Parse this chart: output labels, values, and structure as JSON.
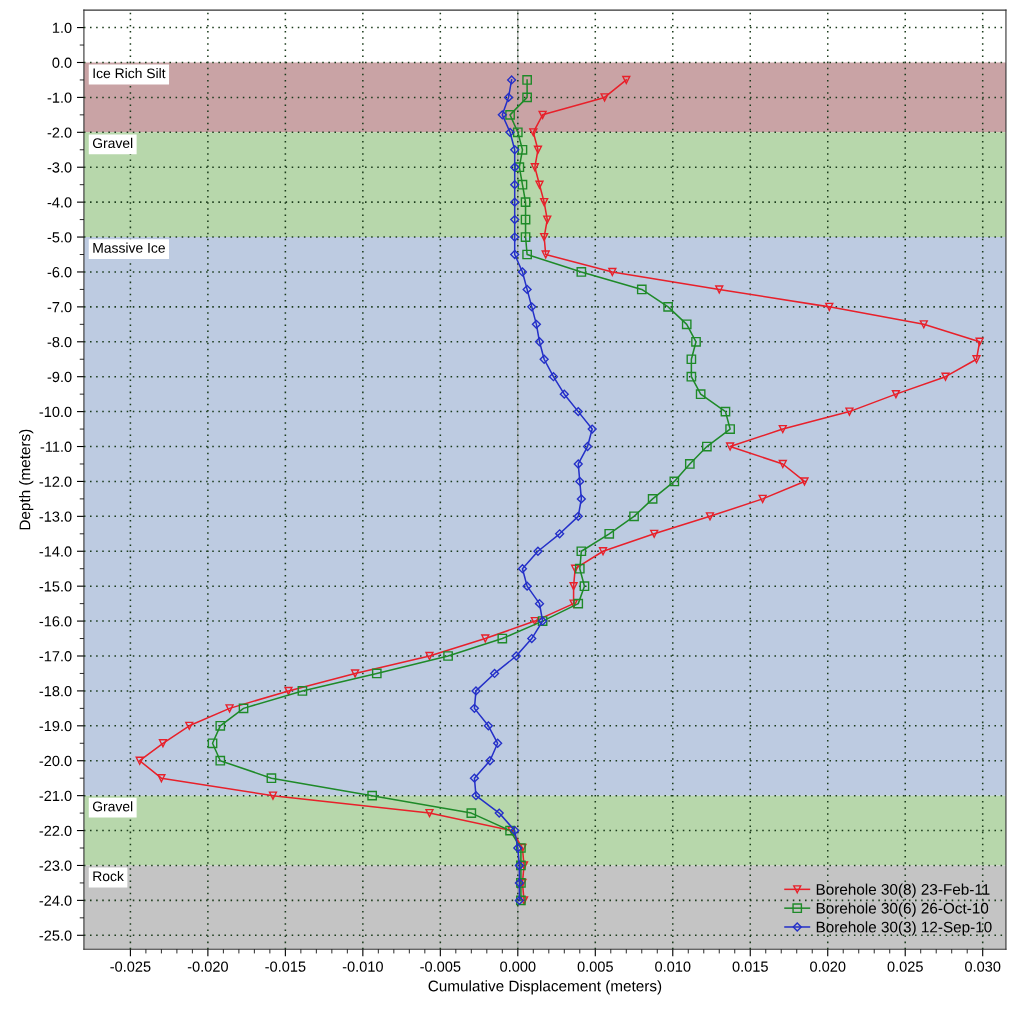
{
  "chart_data": {
    "type": "line",
    "xlabel": "Cumulative Displacement (meters)",
    "ylabel": "Depth (meters)",
    "xlim": [
      -0.028,
      0.0315
    ],
    "ylim": [
      -25.4,
      1.5
    ],
    "xticks": [
      {
        "value": -0.025,
        "label": "-0.025"
      },
      {
        "value": -0.02,
        "label": "-0.020"
      },
      {
        "value": -0.015,
        "label": "-0.015"
      },
      {
        "value": -0.01,
        "label": "-0.010"
      },
      {
        "value": -0.005,
        "label": "-0.005"
      },
      {
        "value": 0,
        "label": "0.000"
      },
      {
        "value": 0.005,
        "label": "0.005"
      },
      {
        "value": 0.01,
        "label": "0.010"
      },
      {
        "value": 0.015,
        "label": "0.015"
      },
      {
        "value": 0.02,
        "label": "0.020"
      },
      {
        "value": 0.025,
        "label": "0.025"
      },
      {
        "value": 0.03,
        "label": "0.030"
      }
    ],
    "yticks": [
      {
        "value": 1,
        "label": "1.0"
      },
      {
        "value": 0,
        "label": "0.0"
      },
      {
        "value": -1,
        "label": "-1.0"
      },
      {
        "value": -2,
        "label": "-2.0"
      },
      {
        "value": -3,
        "label": "-3.0"
      },
      {
        "value": -4,
        "label": "-4.0"
      },
      {
        "value": -5,
        "label": "-5.0"
      },
      {
        "value": -6,
        "label": "-6.0"
      },
      {
        "value": -7,
        "label": "-7.0"
      },
      {
        "value": -8,
        "label": "-8.0"
      },
      {
        "value": -9,
        "label": "-9.0"
      },
      {
        "value": -10,
        "label": "-10.0"
      },
      {
        "value": -11,
        "label": "-11.0"
      },
      {
        "value": -12,
        "label": "-12.0"
      },
      {
        "value": -13,
        "label": "-13.0"
      },
      {
        "value": -14,
        "label": "-14.0"
      },
      {
        "value": -15,
        "label": "-15.0"
      },
      {
        "value": -16,
        "label": "-16.0"
      },
      {
        "value": -17,
        "label": "-17.0"
      },
      {
        "value": -18,
        "label": "-18.0"
      },
      {
        "value": -19,
        "label": "-19.0"
      },
      {
        "value": -20,
        "label": "-20.0"
      },
      {
        "value": -21,
        "label": "-21.0"
      },
      {
        "value": -22,
        "label": "-22.0"
      },
      {
        "value": -23,
        "label": "-23.0"
      },
      {
        "value": -24,
        "label": "-24.0"
      },
      {
        "value": -25,
        "label": "-25.0"
      }
    ],
    "grid": true,
    "legend": "bottom right",
    "bands": [
      {
        "axis": "y",
        "from": 0,
        "to": -2,
        "label": "Ice Rich Silt",
        "color": "#c9a3a5"
      },
      {
        "axis": "y",
        "from": -2,
        "to": -5,
        "label": "Gravel",
        "color": "#b7d7ab"
      },
      {
        "axis": "y",
        "from": -5,
        "to": -21,
        "label": "Massive Ice",
        "color": "#bdcbe1"
      },
      {
        "axis": "y",
        "from": -21,
        "to": -23,
        "label": "Gravel",
        "color": "#b7d7ab"
      },
      {
        "axis": "y",
        "from": -23,
        "to": -25.4,
        "label": "Rock",
        "color": "#c4c4c4"
      }
    ],
    "ref_lines": [
      {
        "axis": "x",
        "value": 0,
        "color": "#a0a0a0"
      }
    ],
    "series": [
      {
        "name": "Borehole 30(8) 23-Feb-11",
        "color": "#e8202a",
        "marker": "triangle",
        "x": [
          0.007,
          0.0056,
          0.0016,
          0.001,
          0.0013,
          0.0011,
          0.0014,
          0.0017,
          0.0019,
          0.0017,
          0.0018,
          0.0061,
          0.013,
          0.0201,
          0.0262,
          0.0298,
          0.0296,
          0.0276,
          0.0244,
          0.0214,
          0.0171,
          0.0137,
          0.0171,
          0.0185,
          0.0158,
          0.0124,
          0.0088,
          0.0055,
          0.0037,
          0.0036,
          0.0036,
          0.0011,
          -0.0021,
          -0.0057,
          -0.0105,
          -0.0148,
          -0.0186,
          -0.0212,
          -0.0229,
          -0.0244,
          -0.023,
          -0.0158,
          -0.0057,
          -0.0004,
          0.0003,
          0.0004,
          0.0003,
          0.0004
        ],
        "values": [
          -0.5,
          -1,
          -1.5,
          -2,
          -2.5,
          -3,
          -3.5,
          -4,
          -4.5,
          -5,
          -5.5,
          -6,
          -6.5,
          -7,
          -7.5,
          -8,
          -8.5,
          -9,
          -9.5,
          -10,
          -10.5,
          -11,
          -11.5,
          -12,
          -12.5,
          -13,
          -13.5,
          -14,
          -14.5,
          -15,
          -15.5,
          -16,
          -16.5,
          -17,
          -17.5,
          -18,
          -18.5,
          -19,
          -19.5,
          -20,
          -20.5,
          -21,
          -21.5,
          -22,
          -22.5,
          -23,
          -23.5,
          -24
        ]
      },
      {
        "name": "Borehole 30(6) 26-Oct-10",
        "color": "#1e8a28",
        "marker": "square",
        "x": [
          0.0006,
          0.0006,
          -0.0005,
          0.0,
          0.0003,
          0.0001,
          0.0003,
          0.0005,
          0.0005,
          0.0005,
          0.0006,
          0.0041,
          0.008,
          0.0097,
          0.0109,
          0.0115,
          0.0112,
          0.0112,
          0.0118,
          0.0134,
          0.0137,
          0.0122,
          0.0111,
          0.0101,
          0.0087,
          0.0075,
          0.0059,
          0.0041,
          0.004,
          0.0043,
          0.0039,
          0.0016,
          -0.001,
          -0.0045,
          -0.0091,
          -0.0139,
          -0.0177,
          -0.0192,
          -0.0197,
          -0.0192,
          -0.0159,
          -0.0094,
          -0.003,
          -0.0005,
          0.0002,
          0.0002,
          0.0002,
          0.0002
        ],
        "values": [
          -0.5,
          -1,
          -1.5,
          -2,
          -2.5,
          -3,
          -3.5,
          -4,
          -4.5,
          -5,
          -5.5,
          -6,
          -6.5,
          -7,
          -7.5,
          -8,
          -8.5,
          -9,
          -9.5,
          -10,
          -10.5,
          -11,
          -11.5,
          -12,
          -12.5,
          -13,
          -13.5,
          -14,
          -14.5,
          -15,
          -15.5,
          -16,
          -16.5,
          -17,
          -17.5,
          -18,
          -18.5,
          -19,
          -19.5,
          -20,
          -20.5,
          -21,
          -21.5,
          -22,
          -22.5,
          -23,
          -23.5,
          -24
        ]
      },
      {
        "name": "Borehole 30(3) 12-Sep-10",
        "color": "#2430c8",
        "marker": "diamond",
        "x": [
          -0.0004,
          -0.0006,
          -0.001,
          -0.0005,
          -0.0002,
          -0.0002,
          -0.0002,
          -0.0002,
          -0.0002,
          -0.0002,
          -0.0002,
          0.0003,
          0.0006,
          0.0009,
          0.0012,
          0.0014,
          0.0017,
          0.0023,
          0.003,
          0.0039,
          0.0048,
          0.0045,
          0.0039,
          0.004,
          0.0041,
          0.0039,
          0.0027,
          0.0013,
          0.0003,
          0.0006,
          0.0014,
          0.0016,
          0.0009,
          -0.0001,
          -0.0015,
          -0.0027,
          -0.0028,
          -0.0019,
          -0.0013,
          -0.0018,
          -0.0028,
          -0.0027,
          -0.0012,
          -0.0002,
          0.0,
          0.0001,
          0.0001,
          0.0001
        ],
        "values": [
          -0.5,
          -1,
          -1.5,
          -2,
          -2.5,
          -3,
          -3.5,
          -4,
          -4.5,
          -5,
          -5.5,
          -6,
          -6.5,
          -7,
          -7.5,
          -8,
          -8.5,
          -9,
          -9.5,
          -10,
          -10.5,
          -11,
          -11.5,
          -12,
          -12.5,
          -13,
          -13.5,
          -14,
          -14.5,
          -15,
          -15.5,
          -16,
          -16.5,
          -17,
          -17.5,
          -18,
          -18.5,
          -19,
          -19.5,
          -20,
          -20.5,
          -21,
          -21.5,
          -22,
          -22.5,
          -23,
          -23.5,
          -24
        ]
      }
    ]
  }
}
